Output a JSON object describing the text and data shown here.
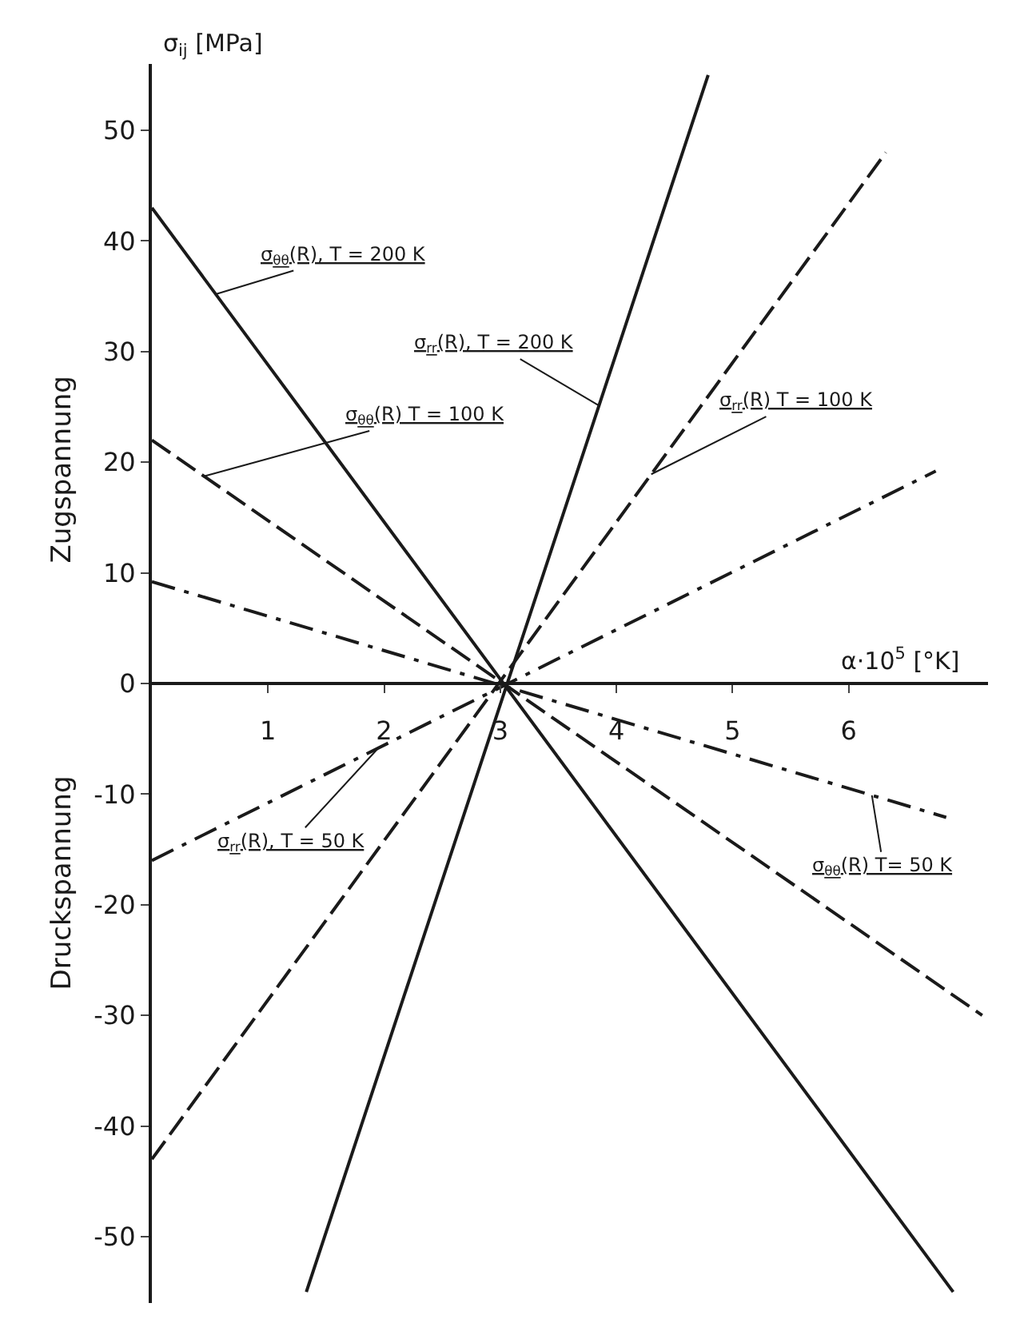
{
  "chart_data": {
    "type": "line",
    "xlabel": "α·10$^{5}$ [°K]",
    "ylabel": "σ$_{ij}$ [MPa]",
    "xlim": [
      0,
      7.2
    ],
    "ylim": [
      -56,
      56
    ],
    "xticks": [
      1,
      2,
      3,
      4,
      5,
      6
    ],
    "yticks": [
      -50,
      -40,
      -30,
      -20,
      -10,
      0,
      10,
      20,
      30,
      40,
      50
    ],
    "legend": false,
    "annotations": [
      "Zugspannung",
      "Druckspannung"
    ],
    "series": [
      {
        "name": "σ$_{θθ}$(R), T = 200 K",
        "color": "#1a1a1a",
        "line_style": "solid",
        "x": [
          0,
          6.9
        ],
        "values": [
          43,
          -55
        ]
      },
      {
        "name": "σ$_{rr}$(R), T = 200 K",
        "color": "#1a1a1a",
        "line_style": "solid",
        "x": [
          1.33,
          4.79
        ],
        "values": [
          -55,
          55
        ]
      },
      {
        "name": "σ$_{θθ}$(R) T = 100 K",
        "color": "#1a1a1a",
        "line_style": "dashed",
        "x": [
          0,
          7.15
        ],
        "values": [
          22,
          -30
        ]
      },
      {
        "name": "σ$_{rr}$(R) T = 100 K",
        "color": "#1a1a1a",
        "line_style": "dashed",
        "x": [
          0,
          6.32
        ],
        "values": [
          -43,
          48
        ]
      },
      {
        "name": "σ$_{θθ}$(R) T= 50 K",
        "color": "#1a1a1a",
        "line_style": "dashdot",
        "x": [
          0,
          6.84
        ],
        "values": [
          9.2,
          -12.1
        ]
      },
      {
        "name": "σ$_{rr}$(R), T = 50 K",
        "color": "#1a1a1a",
        "line_style": "dashdot",
        "x": [
          0,
          6.75
        ],
        "values": [
          -16,
          19.2
        ]
      }
    ]
  }
}
